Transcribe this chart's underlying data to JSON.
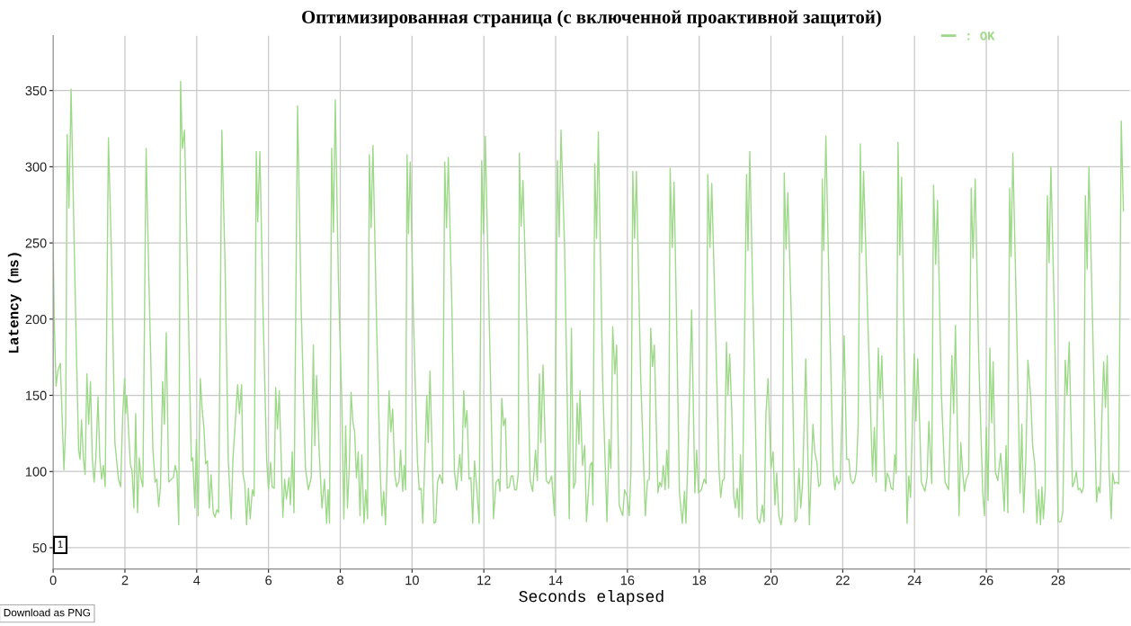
{
  "chart_data": {
    "type": "line",
    "title": "Оптимизированная страница (с включенной проактивной защитой)",
    "xlabel": "Seconds elapsed",
    "ylabel": "Latency (ms)",
    "xlim": [
      0,
      30
    ],
    "ylim": [
      36,
      386
    ],
    "xticks": [
      0,
      2,
      4,
      6,
      8,
      10,
      12,
      14,
      16,
      18,
      20,
      22,
      24,
      26,
      28
    ],
    "yticks": [
      50,
      100,
      150,
      200,
      250,
      300,
      350
    ],
    "grid": true,
    "legend": "top right",
    "marker": "none",
    "line_style": "solid",
    "annotations": [
      "1",
      "Download as PNG"
    ],
    "series": [
      {
        "name": ": OK",
        "color": "#9ed98a",
        "x": [
          0,
          0.03,
          0.08,
          0.13,
          0.2,
          0.23,
          0.3,
          0.35,
          0.39,
          0.44,
          0.5,
          0.57,
          0.64,
          0.71,
          0.75,
          0.79,
          0.84,
          0.89,
          0.94,
          0.99,
          1.04,
          1.09,
          1.14,
          1.19,
          1.25,
          1.3,
          1.35,
          1.4,
          1.45,
          1.54,
          1.62,
          1.72,
          1.82,
          1.88,
          1.94,
          1.99,
          2.02,
          2.05,
          2.15,
          2.2,
          2.25,
          2.3,
          2.35,
          2.4,
          2.45,
          2.5,
          2.59,
          2.67,
          2.78,
          2.84,
          2.89,
          2.94,
          2.99,
          3.05,
          3.1,
          3.15,
          3.22,
          3.29,
          3.35,
          3.4,
          3.45,
          3.5,
          3.55,
          3.6,
          3.66,
          3.75,
          3.85,
          3.89,
          3.95,
          3.99,
          4.04,
          4.1,
          4.15,
          4.2,
          4.25,
          4.3,
          4.35,
          4.4,
          4.46,
          4.51,
          4.56,
          4.61,
          4.7,
          4.79,
          4.88,
          4.96,
          5.01,
          5.14,
          5.19,
          5.25,
          5.29,
          5.34,
          5.39,
          5.44,
          5.49,
          5.55,
          5.6,
          5.66,
          5.7,
          5.76,
          5.85,
          5.95,
          6.0,
          6.06,
          6.1,
          6.16,
          6.2,
          6.25,
          6.3,
          6.4,
          6.45,
          6.5,
          6.57,
          6.61,
          6.66,
          6.71,
          6.81,
          6.91,
          7.03,
          7.11,
          7.19,
          7.25,
          7.29,
          7.34,
          7.41,
          7.49,
          7.56,
          7.62,
          7.66,
          7.7,
          7.76,
          7.81,
          7.86,
          7.95,
          8.04,
          8.1,
          8.15,
          8.2,
          8.25,
          8.3,
          8.35,
          8.4,
          8.45,
          8.5,
          8.55,
          8.6,
          8.66,
          8.71,
          8.76,
          8.81,
          8.86,
          8.91,
          9.01,
          9.11,
          9.16,
          9.21,
          9.26,
          9.36,
          9.41,
          9.46,
          9.52,
          9.57,
          9.64,
          9.68,
          9.74,
          9.78,
          9.82,
          9.86,
          9.9,
          9.95,
          10.04,
          10.15,
          10.2,
          10.25,
          10.3,
          10.41,
          10.45,
          10.5,
          10.61,
          10.66,
          10.71,
          10.77,
          10.85,
          10.91,
          10.96,
          11.01,
          11.11,
          11.18,
          11.24,
          11.33,
          11.38,
          11.44,
          11.48,
          11.53,
          11.59,
          11.64,
          11.69,
          11.74,
          11.79,
          11.87,
          11.94,
          11.99,
          12.04,
          12.14,
          12.27,
          12.34,
          12.41,
          12.45,
          12.5,
          12.55,
          12.6,
          12.65,
          12.71,
          12.76,
          12.81,
          12.86,
          12.91,
          12.96,
          12.99,
          13.04,
          13.09,
          13.21,
          13.29,
          13.36,
          13.44,
          13.49,
          13.55,
          13.59,
          13.65,
          13.74,
          13.81,
          13.89,
          13.97,
          14.05,
          14.1,
          14.15,
          14.25,
          14.38,
          14.44,
          14.5,
          14.55,
          14.6,
          14.65,
          14.68,
          14.75,
          14.81,
          14.86,
          14.96,
          15.01,
          15.04,
          15.09,
          15.14,
          15.19,
          15.31,
          15.43,
          15.49,
          15.54,
          15.59,
          15.65,
          15.7,
          15.77,
          15.87,
          15.92,
          15.99,
          16.05,
          16.1,
          16.15,
          16.2,
          16.25,
          16.37,
          16.5,
          16.56,
          16.61,
          16.65,
          16.7,
          16.75,
          16.85,
          16.9,
          16.95,
          17.0,
          17.05,
          17.1,
          17.15,
          17.19,
          17.25,
          17.3,
          17.37,
          17.45,
          17.53,
          17.59,
          17.63,
          17.7,
          17.79,
          17.88,
          17.93,
          17.98,
          18.06,
          18.14,
          18.19,
          18.24,
          18.3,
          18.35,
          18.45,
          18.55,
          18.6,
          18.65,
          18.7,
          18.76,
          18.8,
          18.85,
          18.91,
          18.96,
          19.01,
          19.06,
          19.11,
          19.15,
          19.2,
          19.32,
          19.36,
          19.41,
          19.51,
          19.62,
          19.69,
          19.76,
          19.81,
          19.86,
          19.92,
          20.0,
          20.06,
          20.11,
          20.16,
          20.22,
          20.28,
          20.32,
          20.37,
          20.42,
          20.47,
          20.57,
          20.67,
          20.72,
          20.78,
          20.83,
          20.88,
          20.97,
          21.07,
          21.17,
          21.22,
          21.28,
          21.33,
          21.38,
          21.43,
          21.47,
          21.53,
          21.63,
          21.73,
          21.78,
          21.83,
          21.88,
          21.93,
          22.04,
          22.11,
          22.17,
          22.22,
          22.28,
          22.33,
          22.38,
          22.43,
          22.49,
          22.53,
          22.58,
          22.7,
          22.83,
          22.88,
          22.93,
          22.99,
          23.04,
          23.09,
          23.19,
          23.24,
          23.29,
          23.35,
          23.4,
          23.45,
          23.49,
          23.54,
          23.59,
          23.64,
          23.79,
          23.84,
          23.89,
          23.99,
          24.04,
          24.09,
          24.19,
          24.24,
          24.29,
          24.35,
          24.4,
          24.48,
          24.53,
          24.59,
          24.64,
          24.75,
          24.85,
          24.95,
          25.04,
          25.09,
          25.14,
          25.24,
          25.29,
          25.34,
          25.39,
          25.44,
          25.51,
          25.58,
          25.63,
          25.69,
          25.79,
          25.9,
          25.95,
          26.0,
          26.05,
          26.1,
          26.15,
          26.19,
          26.25,
          26.32,
          26.4,
          26.45,
          26.5,
          26.55,
          26.6,
          26.65,
          26.69,
          26.74,
          26.84,
          26.94,
          26.99,
          27.04,
          27.1,
          27.16,
          27.24,
          27.29,
          27.35,
          27.41,
          27.46,
          27.51,
          27.55,
          27.59,
          27.64,
          27.7,
          27.75,
          27.8,
          27.9,
          28.0,
          28.08,
          28.13,
          28.2,
          28.25,
          28.31,
          28.4,
          28.45,
          28.51,
          28.56,
          28.61,
          28.66,
          28.71,
          28.76,
          28.81,
          28.86,
          28.96,
          29.07,
          29.12,
          29.17,
          29.22,
          29.27,
          29.32,
          29.37,
          29.42,
          29.48,
          29.52,
          29.57,
          29.62,
          29.69,
          29.76,
          29.82
        ],
        "values": [
          250,
          199,
          156,
          166,
          171,
          150,
          101,
          131,
          321,
          273,
          351,
          268,
          187,
          114,
          108,
          134,
          109,
          98,
          164,
          131,
          159,
          109,
          93,
          109,
          149,
          109,
          95,
          104,
          90,
          319,
          247,
          119,
          95,
          90,
          138,
          161,
          138,
          150,
          105,
          100,
          76,
          138,
          73,
          109,
          95,
          90,
          312,
          223,
          114,
          93,
          95,
          77,
          90,
          159,
          131,
          191,
          93,
          95,
          96,
          104,
          99,
          65,
          356,
          312,
          324,
          223,
          107,
          109,
          76,
          121,
          71,
          161,
          141,
          129,
          105,
          107,
          76,
          98,
          73,
          70,
          75,
          73,
          324,
          235,
          107,
          69,
          108,
          157,
          138,
          157,
          98,
          92,
          65,
          89,
          69,
          88,
          84,
          310,
          264,
          310,
          203,
          107,
          88,
          106,
          90,
          89,
          155,
          128,
          153,
          70,
          95,
          82,
          96,
          78,
          113,
          73,
          340,
          208,
          102,
          88,
          96,
          183,
          117,
          163,
          114,
          76,
          95,
          66,
          88,
          66,
          312,
          257,
          344,
          223,
          148,
          69,
          130,
          76,
          102,
          152,
          133,
          126,
          96,
          113,
          71,
          111,
          66,
          88,
          69,
          308,
          260,
          314,
          199,
          102,
          71,
          87,
          65,
          153,
          126,
          141,
          98,
          90,
          94,
          114,
          87,
          104,
          88,
          308,
          256,
          303,
          199,
          107,
          88,
          89,
          66,
          150,
          119,
          166,
          66,
          67,
          93,
          98,
          92,
          303,
          260,
          306,
          208,
          100,
          88,
          111,
          94,
          153,
          129,
          140,
          95,
          96,
          66,
          107,
          93,
          66,
          304,
          256,
          320,
          210,
          69,
          93,
          95,
          87,
          148,
          130,
          135,
          89,
          90,
          97,
          97,
          88,
          88,
          99,
          309,
          261,
          291,
          187,
          94,
          87,
          114,
          94,
          164,
          119,
          170,
          94,
          92,
          97,
          71,
          304,
          254,
          324,
          247,
          69,
          194,
          89,
          93,
          145,
          118,
          153,
          104,
          117,
          67,
          104,
          106,
          78,
          302,
          253,
          323,
          160,
          67,
          121,
          102,
          195,
          164,
          183,
          78,
          71,
          88,
          84,
          71,
          100,
          297,
          253,
          297,
          162,
          71,
          94,
          95,
          194,
          169,
          183,
          86,
          93,
          90,
          104,
          88,
          114,
          89,
          299,
          247,
          290,
          199,
          86,
          66,
          87,
          66,
          121,
          206,
          86,
          114,
          86,
          88,
          95,
          92,
          295,
          247,
          289,
          199,
          102,
          83,
          94,
          95,
          185,
          150,
          177,
          138,
          84,
          76,
          89,
          70,
          111,
          69,
          295,
          245,
          310,
          199,
          69,
          66,
          78,
          67,
          138,
          161,
          102,
          113,
          78,
          99,
          71,
          65,
          71,
          296,
          246,
          283,
          199,
          67,
          69,
          102,
          76,
          92,
          174,
          65,
          131,
          113,
          106,
          90,
          92,
          292,
          245,
          320,
          208,
          102,
          88,
          97,
          92,
          94,
          189,
          108,
          108,
          95,
          92,
          94,
          100,
          131,
          315,
          244,
          297,
          199,
          97,
          129,
          93,
          181,
          148,
          176,
          87,
          99,
          96,
          89,
          88,
          111,
          99,
          316,
          242,
          293,
          66,
          97,
          83,
          177,
          133,
          174,
          93,
          90,
          87,
          96,
          133,
          92,
          288,
          236,
          278,
          150,
          93,
          88,
          176,
          138,
          196,
          71,
          119,
          100,
          87,
          95,
          99,
          286,
          240,
          292,
          174,
          86,
          71,
          129,
          81,
          181,
          132,
          172,
          100,
          94,
          112,
          95,
          74,
          117,
          73,
          286,
          241,
          309,
          203,
          86,
          131,
          73,
          107,
          173,
          148,
          117,
          105,
          66,
          88,
          65,
          90,
          69,
          88,
          281,
          237,
          300,
          199,
          67,
          67,
          73,
          173,
          150,
          185,
          90,
          93,
          100,
          88,
          89,
          86,
          90,
          281,
          233,
          300,
          199,
          80,
          90,
          86,
          136,
          172,
          142,
          176,
          102,
          69,
          99,
          92,
          93,
          92,
          330,
          271
        ]
      }
    ]
  }
}
